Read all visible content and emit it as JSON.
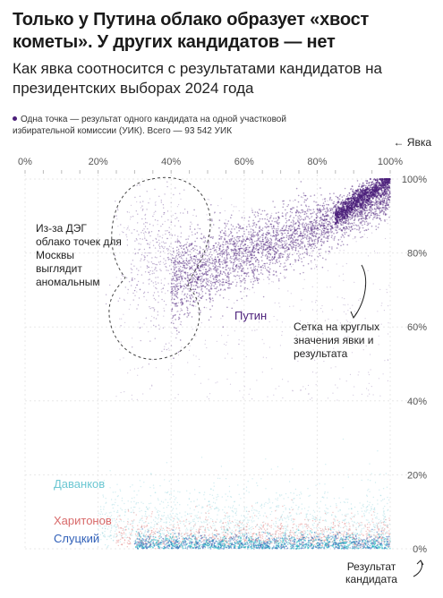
{
  "title": "Только у Путина облако образует «хвост кометы». У других кандидатов — нет",
  "subtitle": "Как явка соотносится с результатами кандидатов на президентских выборах 2024 года",
  "note": "Одна точка — результат одного кандидата на одной участковой избирательной комиссии (УИК). Всего — 93 542 УИК",
  "x_axis_title": "← Явка",
  "y_axis_title": "Результат кандидата",
  "annotations": {
    "moscow": "Из-за ДЭГ облако точек для Москвы выглядит аномальным",
    "grid": "Сетка на круглых значения явки и результата"
  },
  "colors": {
    "putin": "#4b1f7a",
    "davankov": "#8fd3dc",
    "kharitonov": "#e07a7a",
    "slutsky": "#2f5fb8",
    "slutsky_dense": "#13b5c2"
  },
  "chart_data": {
    "type": "scatter",
    "xlabel": "Явка",
    "ylabel": "Результат кандидата",
    "xlim": [
      0,
      100
    ],
    "ylim": [
      0,
      100
    ],
    "x_ticks": [
      "0%",
      "20%",
      "40%",
      "60%",
      "80%",
      "100%"
    ],
    "y_ticks": [
      "0%",
      "20%",
      "40%",
      "60%",
      "80%",
      "100%"
    ],
    "grid": true,
    "series": [
      {
        "name": "Путин",
        "x_range": [
          40,
          100
        ],
        "y_range": [
          70,
          100
        ],
        "cluster_center": [
          70,
          85
        ]
      },
      {
        "name": "Даванков",
        "x_range": [
          20,
          100
        ],
        "y_range": [
          0,
          25
        ],
        "cluster_center": [
          55,
          4
        ]
      },
      {
        "name": "Харитонов",
        "x_range": [
          20,
          100
        ],
        "y_range": [
          0,
          12
        ],
        "cluster_center": [
          55,
          3
        ]
      },
      {
        "name": "Слуцкий",
        "x_range": [
          20,
          100
        ],
        "y_range": [
          0,
          8
        ],
        "cluster_center": [
          55,
          2
        ]
      }
    ]
  }
}
